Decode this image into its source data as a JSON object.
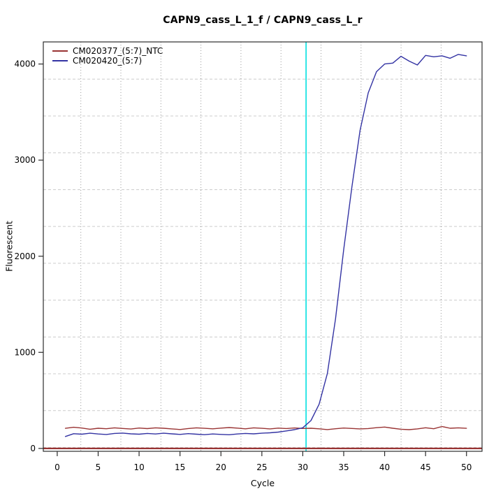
{
  "title": "CAPN9_cass_L_1_f / CAPN9_cass_L_r",
  "chart_data": {
    "type": "line",
    "title": "CAPN9_cass_L_1_f / CAPN9_cass_L_r",
    "xlabel": "Cycle",
    "ylabel": "Fluorescent",
    "xlim": [
      -1.7,
      51.9
    ],
    "ylim": [
      -30,
      4230
    ],
    "xticks": [
      0,
      5,
      10,
      15,
      20,
      25,
      30,
      35,
      40,
      45,
      50
    ],
    "yticks": [
      0,
      1000,
      2000,
      3000,
      4000
    ],
    "grid": true,
    "legend_position": "top-left",
    "x": [
      1,
      2,
      3,
      4,
      5,
      6,
      7,
      8,
      9,
      10,
      11,
      12,
      13,
      14,
      15,
      16,
      17,
      18,
      19,
      20,
      21,
      22,
      23,
      24,
      25,
      26,
      27,
      28,
      29,
      30,
      31,
      32,
      33,
      34,
      35,
      36,
      37,
      38,
      39,
      40,
      41,
      42,
      43,
      44,
      45,
      46,
      47,
      48,
      49,
      50
    ],
    "series": [
      {
        "name": "CM020377_(5:7)_NTC",
        "color": "#993333",
        "values": [
          209,
          220,
          212,
          200,
          210,
          205,
          214,
          208,
          202,
          212,
          206,
          214,
          210,
          203,
          197,
          207,
          214,
          209,
          204,
          211,
          217,
          211,
          204,
          214,
          209,
          203,
          211,
          207,
          213,
          208,
          210,
          204,
          196,
          205,
          212,
          208,
          203,
          207,
          216,
          222,
          210,
          200,
          195,
          203,
          215,
          205,
          228,
          210,
          214,
          209
        ]
      },
      {
        "name": "CM020420_(5:7)",
        "color": "#3333a3",
        "values": [
          124,
          153,
          148,
          158,
          150,
          145,
          156,
          160,
          152,
          148,
          156,
          150,
          158,
          152,
          146,
          154,
          148,
          143,
          150,
          146,
          142,
          150,
          156,
          152,
          158,
          163,
          170,
          182,
          195,
          215,
          290,
          460,
          780,
          1350,
          2070,
          2720,
          3310,
          3700,
          3920,
          4000,
          4010,
          4080,
          4030,
          3990,
          4090,
          4075,
          4085,
          4060,
          4100,
          4085
        ]
      }
    ],
    "annotations": {
      "threshold_cycle_line": {
        "orientation": "vertical",
        "x": 30.4,
        "color": "#00e0e0"
      },
      "zero_line": {
        "orientation": "horizontal",
        "y": 0,
        "color": "#993333"
      }
    }
  }
}
